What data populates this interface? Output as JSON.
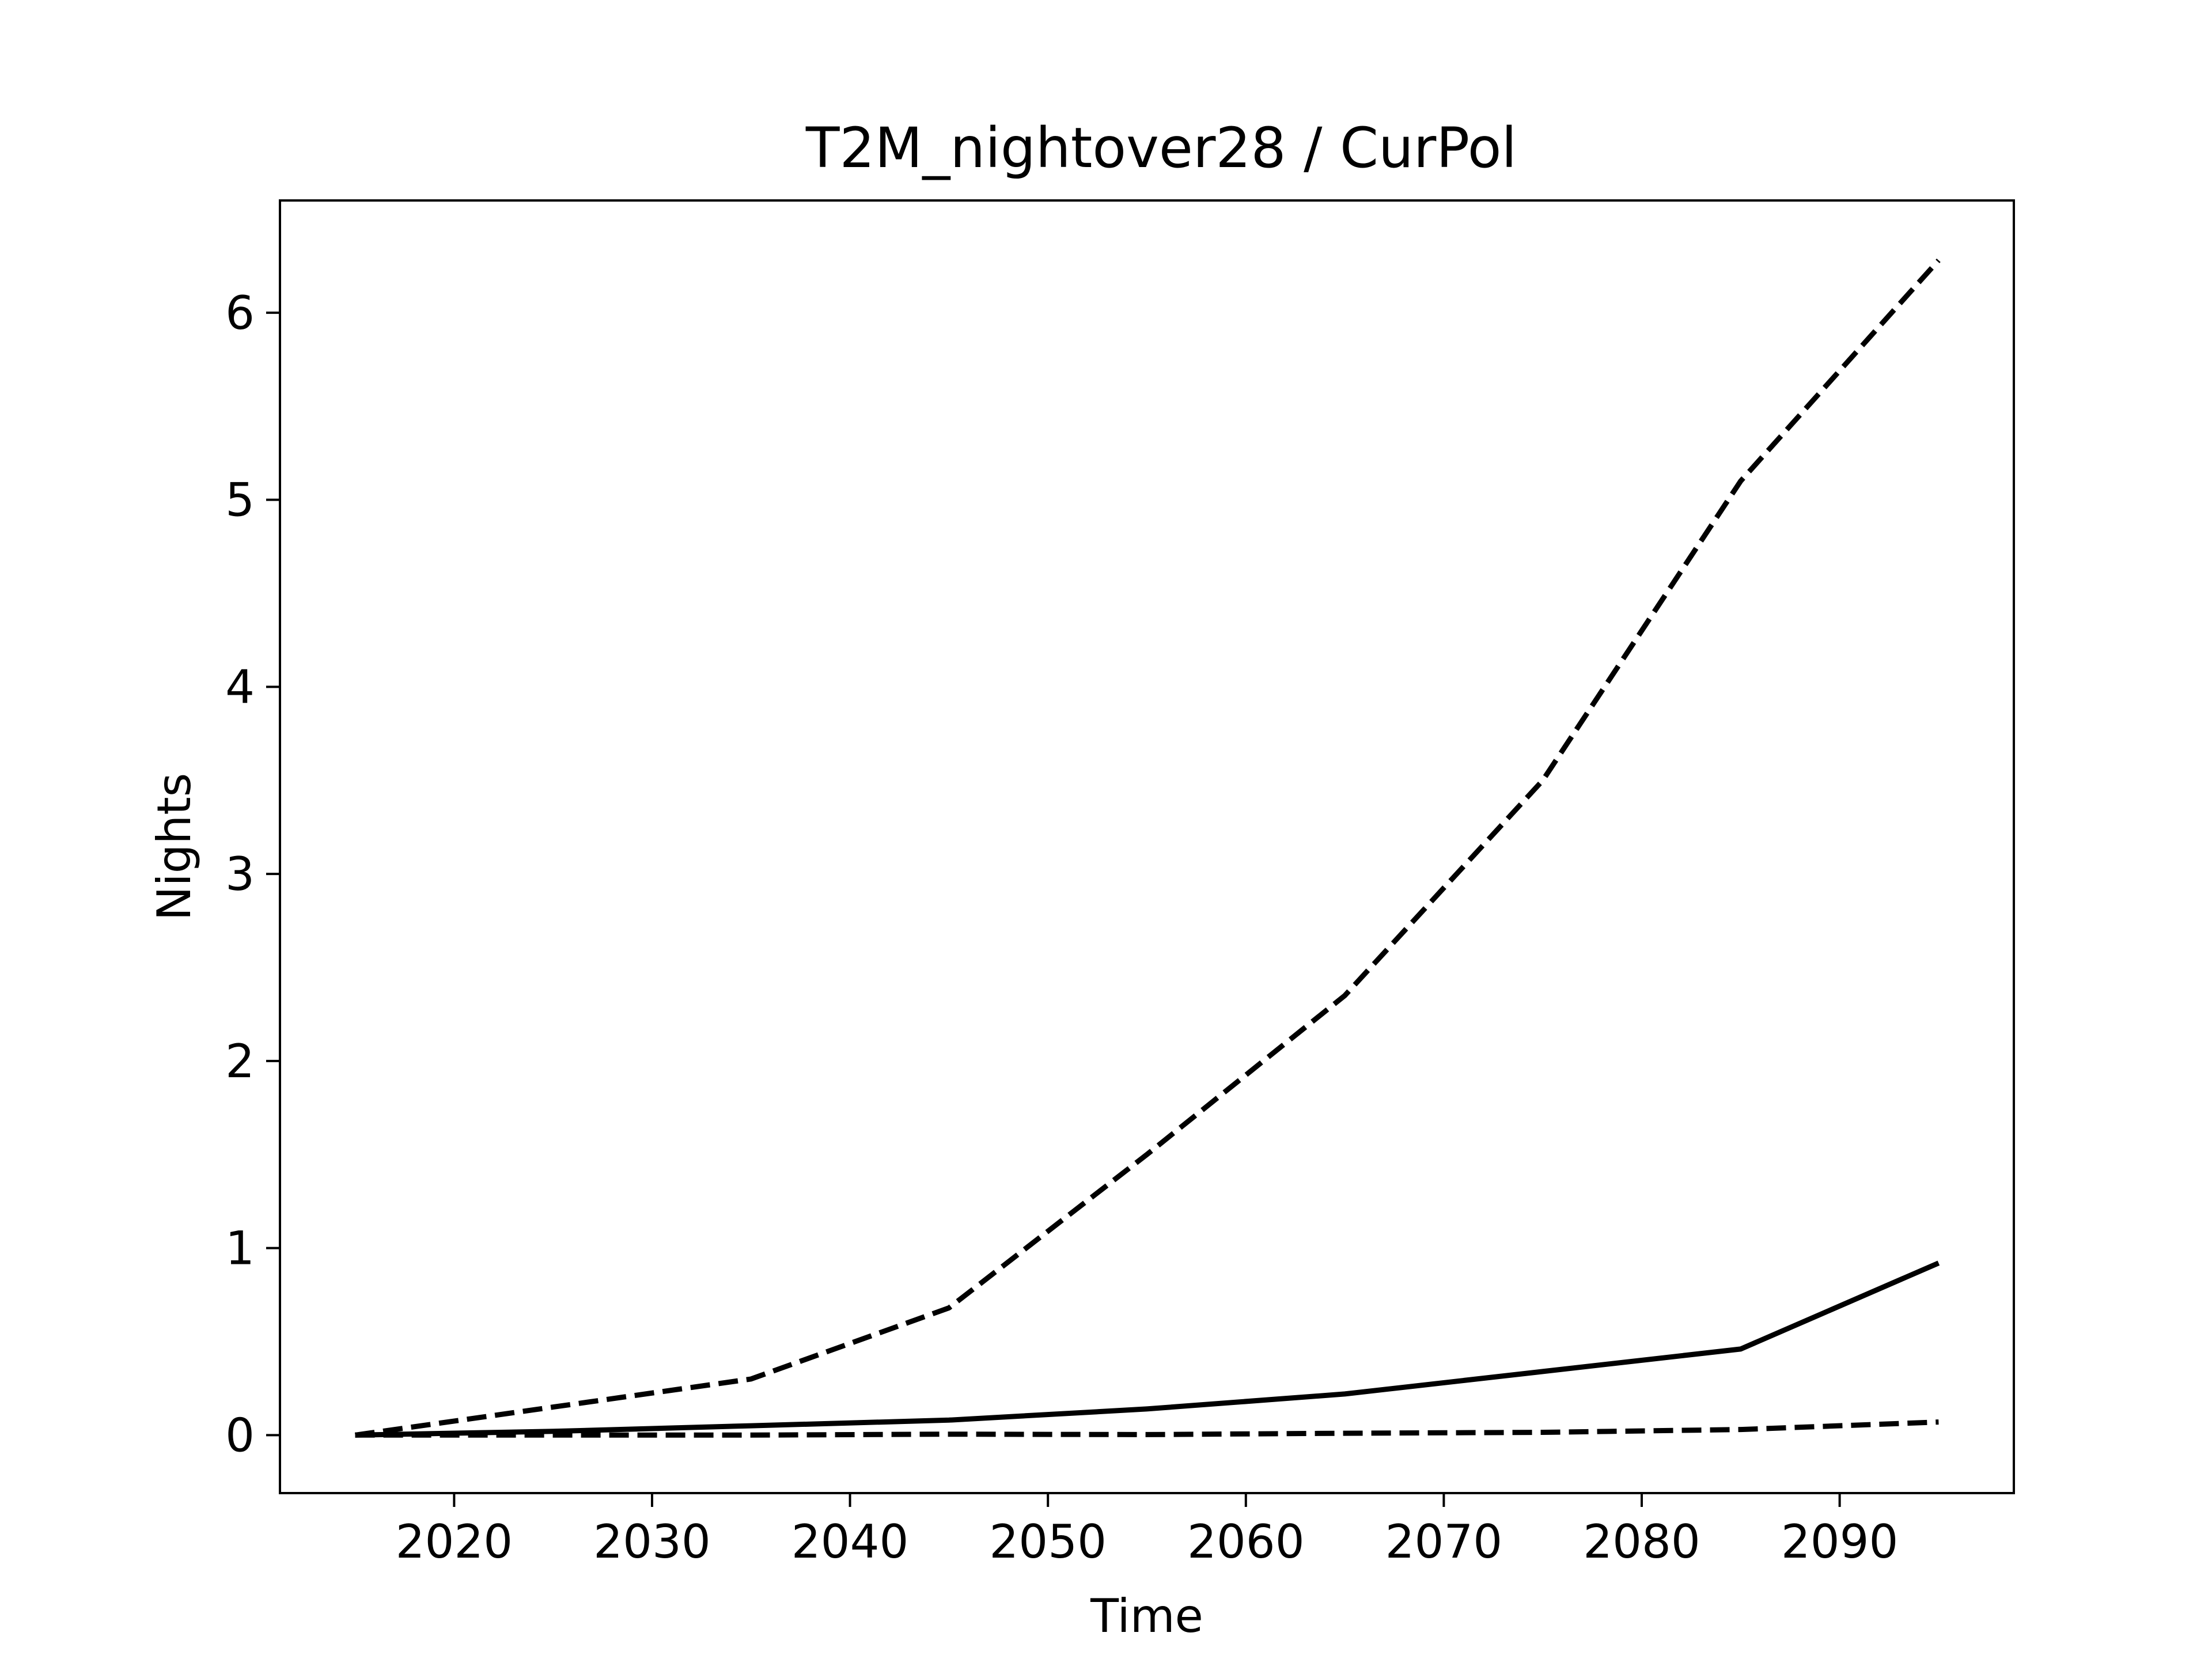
{
  "chart_data": {
    "type": "line",
    "title": "T2M_nightover28 / CurPol",
    "xlabel": "Time",
    "ylabel": "Nights",
    "xlim": [
      2011.2,
      2098.8
    ],
    "ylim": [
      -0.31,
      6.6
    ],
    "xticks": [
      2020,
      2030,
      2040,
      2050,
      2060,
      2070,
      2080,
      2090
    ],
    "yticks": [
      0,
      1,
      2,
      3,
      4,
      5,
      6
    ],
    "grid": false,
    "legend": "none",
    "x": [
      2015,
      2025,
      2035,
      2045,
      2055,
      2065,
      2075,
      2085,
      2095
    ],
    "series": [
      {
        "style": "dashed",
        "color": "#000000",
        "values": [
          0.0,
          0.15,
          0.3,
          0.68,
          1.5,
          2.35,
          3.5,
          5.1,
          6.28
        ]
      },
      {
        "style": "solid",
        "color": "#000000",
        "values": [
          0.0,
          0.02,
          0.05,
          0.08,
          0.14,
          0.22,
          0.34,
          0.46,
          0.92
        ]
      },
      {
        "style": "dashed",
        "color": "#000000",
        "values": [
          0.0,
          0.0,
          0.0,
          0.005,
          0.003,
          0.01,
          0.015,
          0.03,
          0.07
        ]
      }
    ]
  }
}
